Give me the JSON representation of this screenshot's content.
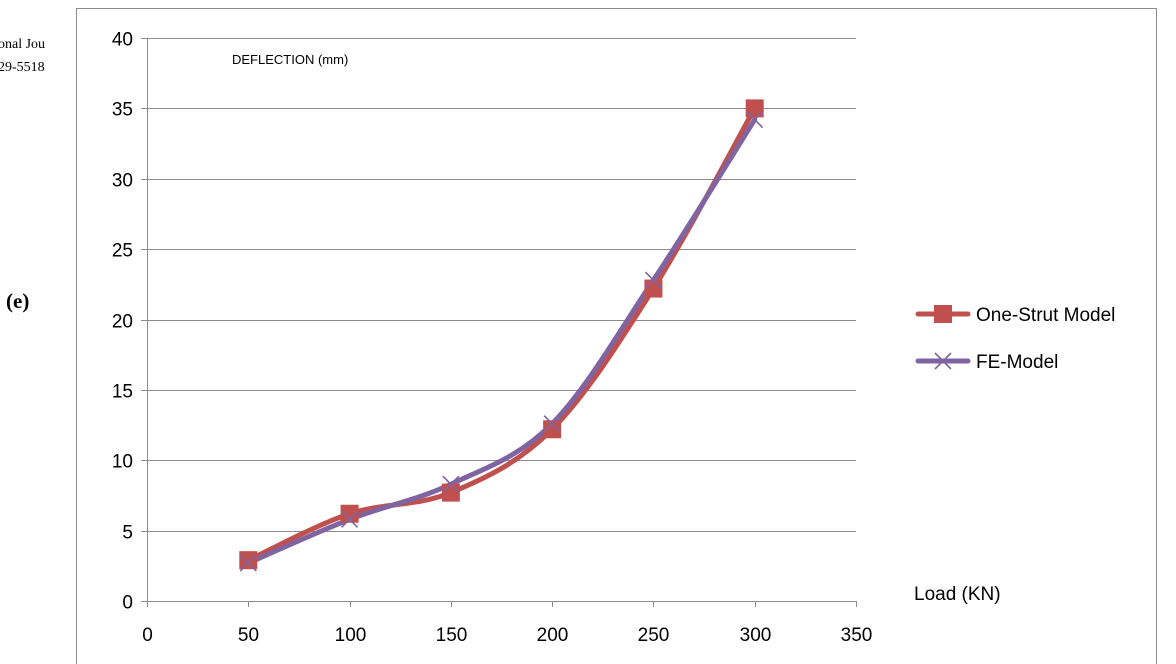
{
  "page": {
    "clip_line_1": "onal Jou",
    "clip_line_2": "29-5518",
    "panel_label": "(e)"
  },
  "chart_data": {
    "type": "line",
    "smooth": true,
    "title": "DEFLECTION (mm)",
    "xlabel": "Load (KN)",
    "ylabel": "",
    "xlim": [
      0,
      350
    ],
    "ylim": [
      0,
      40
    ],
    "xticks": [
      0,
      50,
      100,
      150,
      200,
      250,
      300,
      350
    ],
    "yticks": [
      0,
      5,
      10,
      15,
      20,
      25,
      30,
      35,
      40
    ],
    "grid": "horizontal",
    "legend_position": "right",
    "series": [
      {
        "name": "One-Strut Model",
        "color": "#c0504d",
        "marker": "square",
        "x": [
          50,
          100,
          150,
          200,
          250,
          300
        ],
        "y": [
          2.9,
          6.2,
          7.7,
          12.2,
          22.2,
          35.0
        ]
      },
      {
        "name": "FE-Model",
        "color": "#8064a2",
        "marker": "x",
        "x": [
          50,
          100,
          150,
          200,
          250,
          300
        ],
        "y": [
          2.7,
          5.8,
          8.3,
          12.6,
          22.8,
          34.2
        ]
      }
    ]
  }
}
